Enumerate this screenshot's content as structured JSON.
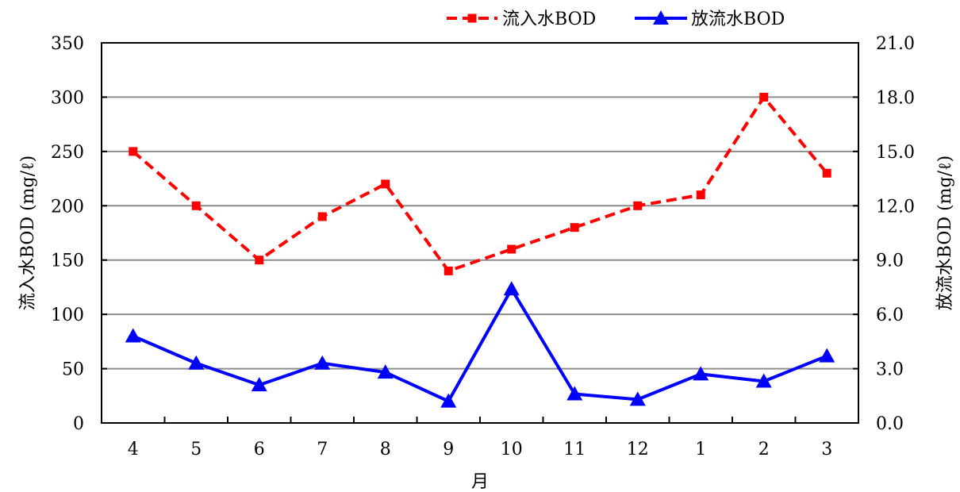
{
  "chart_data": {
    "type": "line",
    "categories": [
      "4",
      "5",
      "6",
      "7",
      "8",
      "9",
      "10",
      "11",
      "12",
      "1",
      "2",
      "3"
    ],
    "xlabel": "月",
    "ylabel_left": "流入水BOD (mg/ℓ)",
    "ylabel_right": "放流水BOD (mg/ℓ)",
    "ylim_left": [
      0,
      350
    ],
    "ylim_right": [
      0.0,
      21.0
    ],
    "yticks_left": [
      "0",
      "50",
      "100",
      "150",
      "200",
      "250",
      "300",
      "350"
    ],
    "yticks_right": [
      "0.0",
      "3.0",
      "6.0",
      "9.0",
      "12.0",
      "15.0",
      "18.0",
      "21.0"
    ],
    "grid": true,
    "legend_position": "top-right",
    "series": [
      {
        "name": "流入水BOD",
        "axis": "left",
        "color": "#ff0000",
        "line_style": "dashed",
        "marker": "square",
        "values": [
          250,
          200,
          150,
          190,
          220,
          140,
          160,
          180,
          200,
          210,
          300,
          230
        ]
      },
      {
        "name": "放流水BOD",
        "axis": "right",
        "color": "#0000ff",
        "line_style": "solid",
        "marker": "triangle",
        "values": [
          4.8,
          3.3,
          2.1,
          3.3,
          2.8,
          1.2,
          7.4,
          1.6,
          1.3,
          2.7,
          2.3,
          3.7
        ]
      }
    ]
  }
}
